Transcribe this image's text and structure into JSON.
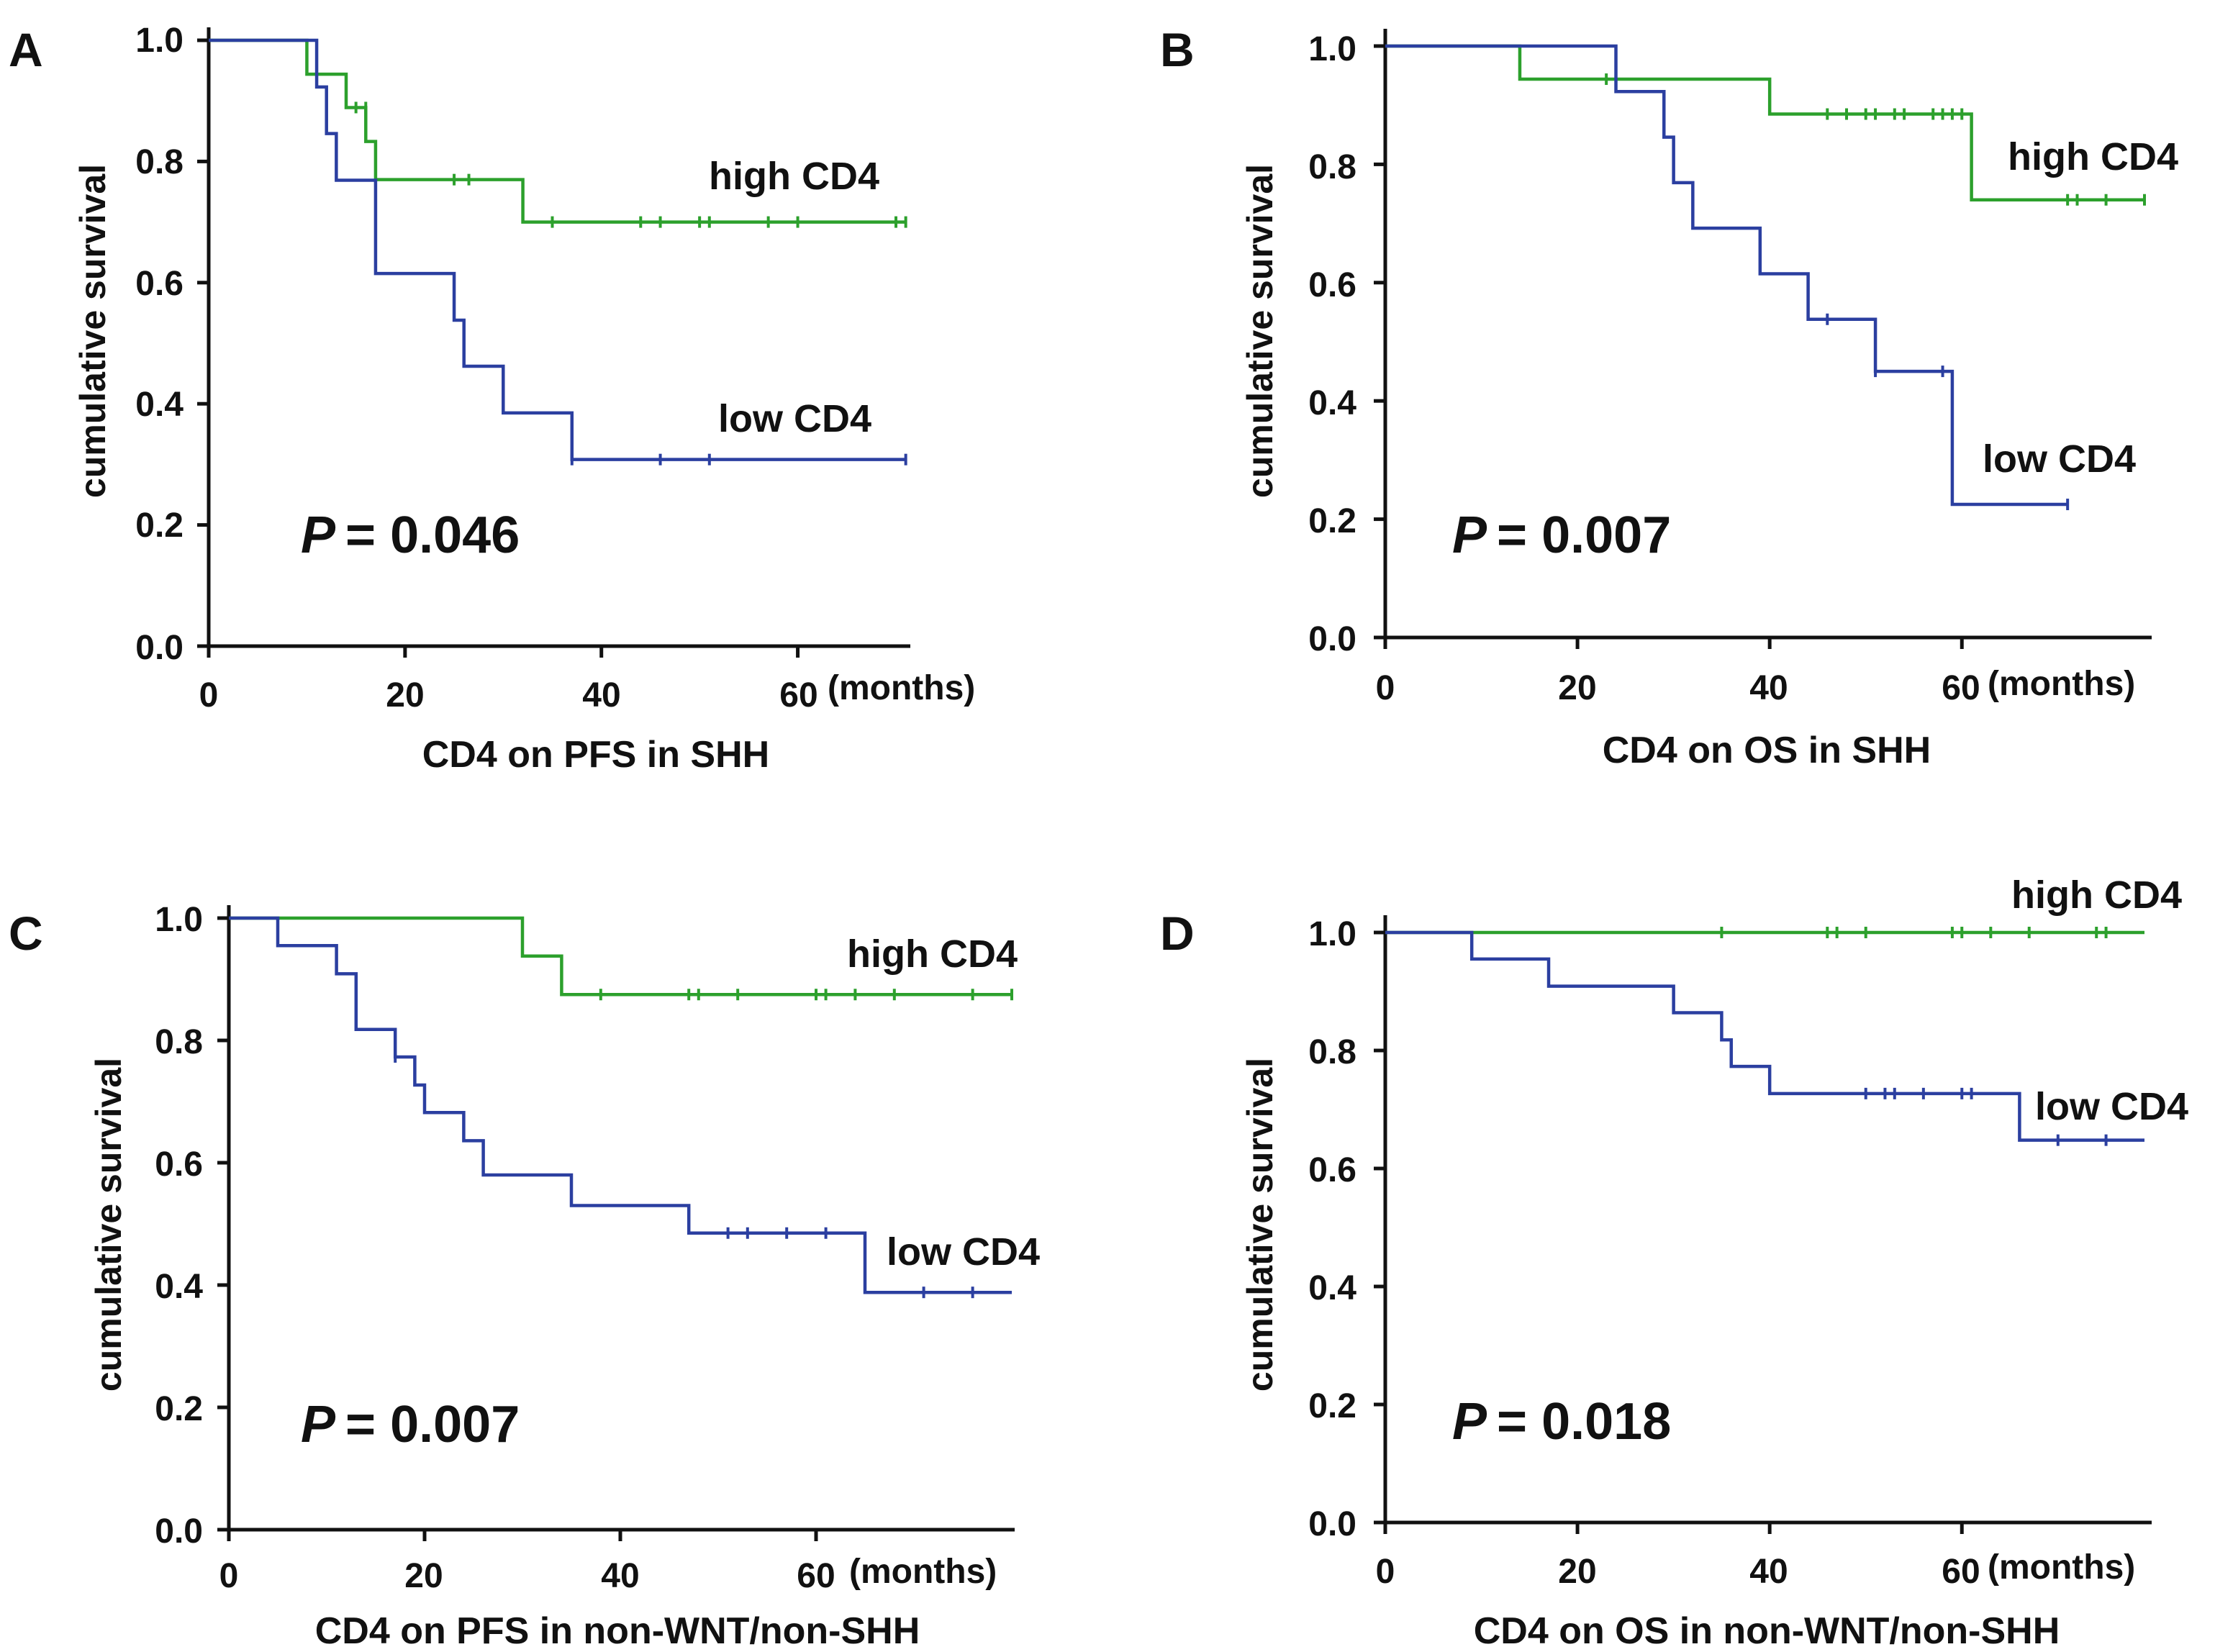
{
  "colors": {
    "high": "#2ca02c",
    "low": "#2b3fa0",
    "axis": "#111111"
  },
  "chart_data": [
    {
      "type": "line",
      "panel": "A",
      "title": "CD4 on PFS in SHH",
      "xlabel": "(months)",
      "ylabel": "cumulative survival",
      "xlim": [
        0,
        70
      ],
      "ylim": [
        0,
        1.0
      ],
      "x_ticks": [
        0,
        20,
        40,
        60
      ],
      "y_ticks": [
        0.0,
        0.2,
        0.4,
        0.6,
        0.8,
        1.0
      ],
      "x_tick_labels": [
        "0",
        "20",
        "40",
        "60"
      ],
      "y_tick_labels": [
        "0.0",
        "0.2",
        "0.4",
        "0.6",
        "0.8",
        "1.0"
      ],
      "p_label": "P",
      "p_value": "= 0.046",
      "series": [
        {
          "name": "high CD4",
          "color_key": "high",
          "steps": [
            [
              0,
              1.0
            ],
            [
              10,
              0.944
            ],
            [
              14,
              0.889
            ],
            [
              16,
              0.833
            ],
            [
              17,
              0.77
            ],
            [
              32,
              0.7
            ]
          ],
          "end_x": 71,
          "censored": [
            [
              15,
              0.889
            ],
            [
              16,
              0.889
            ],
            [
              25,
              0.77
            ],
            [
              26.5,
              0.77
            ],
            [
              35,
              0.7
            ],
            [
              44,
              0.7
            ],
            [
              46,
              0.7
            ],
            [
              50,
              0.7
            ],
            [
              51,
              0.7
            ],
            [
              57,
              0.7
            ],
            [
              60,
              0.7
            ],
            [
              70,
              0.7
            ],
            [
              71,
              0.7
            ]
          ]
        },
        {
          "name": "low CD4",
          "color_key": "low",
          "steps": [
            [
              0,
              1.0
            ],
            [
              11,
              0.923
            ],
            [
              12,
              0.846
            ],
            [
              13,
              0.769
            ],
            [
              17,
              0.615
            ],
            [
              25,
              0.538
            ],
            [
              26,
              0.462
            ],
            [
              30,
              0.385
            ],
            [
              37,
              0.308
            ]
          ],
          "end_x": 71,
          "censored": [
            [
              37,
              0.308
            ],
            [
              46,
              0.308
            ],
            [
              51,
              0.308
            ],
            [
              71,
              0.308
            ]
          ]
        }
      ],
      "annotations": [
        {
          "text": "high CD4",
          "series": "high CD4"
        },
        {
          "text": "low CD4",
          "series": "low CD4"
        }
      ]
    },
    {
      "type": "line",
      "panel": "B",
      "title": "CD4 on OS in SHH",
      "xlabel": "(months)",
      "ylabel": "cumulative survival",
      "xlim": [
        0,
        79
      ],
      "ylim": [
        0,
        1.0
      ],
      "x_ticks": [
        0,
        20,
        40,
        60
      ],
      "y_ticks": [
        0.0,
        0.2,
        0.4,
        0.6,
        0.8,
        1.0
      ],
      "x_tick_labels": [
        "0",
        "20",
        "40",
        "60"
      ],
      "y_tick_labels": [
        "0.0",
        "0.2",
        "0.4",
        "0.6",
        "0.8",
        "1.0"
      ],
      "p_label": "P",
      "p_value": "= 0.007",
      "series": [
        {
          "name": "high CD4",
          "color_key": "high",
          "steps": [
            [
              0,
              1.0
            ],
            [
              14,
              0.944
            ],
            [
              40,
              0.885
            ],
            [
              61,
              0.74
            ]
          ],
          "end_x": 79,
          "censored": [
            [
              23,
              0.944
            ],
            [
              46,
              0.885
            ],
            [
              48,
              0.885
            ],
            [
              50,
              0.885
            ],
            [
              51,
              0.885
            ],
            [
              53,
              0.885
            ],
            [
              54,
              0.885
            ],
            [
              57,
              0.885
            ],
            [
              58,
              0.885
            ],
            [
              59,
              0.885
            ],
            [
              60,
              0.885
            ],
            [
              71,
              0.74
            ],
            [
              72,
              0.74
            ],
            [
              75,
              0.74
            ],
            [
              79,
              0.74
            ]
          ]
        },
        {
          "name": "low CD4",
          "color_key": "low",
          "steps": [
            [
              0,
              1.0
            ],
            [
              24,
              0.923
            ],
            [
              29,
              0.846
            ],
            [
              30,
              0.769
            ],
            [
              32,
              0.692
            ],
            [
              39,
              0.615
            ],
            [
              44,
              0.538
            ],
            [
              51,
              0.45
            ],
            [
              59,
              0.225
            ]
          ],
          "end_x": 71,
          "censored": [
            [
              46,
              0.538
            ],
            [
              51,
              0.45
            ],
            [
              58,
              0.45
            ],
            [
              71,
              0.225
            ]
          ]
        }
      ],
      "annotations": [
        {
          "text": "high CD4",
          "series": "high CD4"
        },
        {
          "text": "low CD4",
          "series": "low CD4"
        }
      ]
    },
    {
      "type": "line",
      "panel": "C",
      "title": "CD4 on PFS in non-WNT/non-SHH",
      "xlabel": "(months)",
      "ylabel": "cumulative survival",
      "xlim": [
        0,
        80
      ],
      "ylim": [
        0,
        1.0
      ],
      "x_ticks": [
        0,
        20,
        40,
        60
      ],
      "y_ticks": [
        0.0,
        0.2,
        0.4,
        0.6,
        0.8,
        1.0
      ],
      "x_tick_labels": [
        "0",
        "20",
        "40",
        "60"
      ],
      "y_tick_labels": [
        "0.0",
        "0.2",
        "0.4",
        "0.6",
        "0.8",
        "1.0"
      ],
      "p_label": "P",
      "p_value": "= 0.007",
      "series": [
        {
          "name": "high CD4",
          "color_key": "high",
          "steps": [
            [
              0,
              1.0
            ],
            [
              30,
              0.938
            ],
            [
              34,
              0.875
            ]
          ],
          "end_x": 80,
          "censored": [
            [
              38,
              0.875
            ],
            [
              47,
              0.875
            ],
            [
              48,
              0.875
            ],
            [
              52,
              0.875
            ],
            [
              60,
              0.875
            ],
            [
              61,
              0.875
            ],
            [
              64,
              0.875
            ],
            [
              68,
              0.875
            ],
            [
              76,
              0.875
            ],
            [
              80,
              0.875
            ]
          ]
        },
        {
          "name": "low CD4",
          "color_key": "low",
          "steps": [
            [
              0,
              1.0
            ],
            [
              5,
              0.955
            ],
            [
              11,
              0.909
            ],
            [
              13,
              0.818
            ],
            [
              17,
              0.773
            ],
            [
              19,
              0.727
            ],
            [
              20,
              0.682
            ],
            [
              24,
              0.636
            ],
            [
              26,
              0.58
            ],
            [
              35,
              0.53
            ],
            [
              47,
              0.485
            ],
            [
              65,
              0.388
            ]
          ],
          "end_x": 80,
          "censored": [
            [
              17,
              0.773
            ],
            [
              51,
              0.485
            ],
            [
              53,
              0.485
            ],
            [
              57,
              0.485
            ],
            [
              61,
              0.485
            ],
            [
              71,
              0.388
            ],
            [
              76,
              0.388
            ]
          ]
        }
      ],
      "annotations": [
        {
          "text": "high CD4",
          "series": "high CD4"
        },
        {
          "text": "low CD4",
          "series": "low CD4"
        }
      ]
    },
    {
      "type": "line",
      "panel": "D",
      "title": "CD4 on OS in non-WNT/non-SHH",
      "xlabel": "(months)",
      "ylabel": "cumulative survival",
      "xlim": [
        0,
        79
      ],
      "ylim": [
        0,
        1.0
      ],
      "x_ticks": [
        0,
        20,
        40,
        60
      ],
      "y_ticks": [
        0.0,
        0.2,
        0.4,
        0.6,
        0.8,
        1.0
      ],
      "x_tick_labels": [
        "0",
        "20",
        "40",
        "60"
      ],
      "y_tick_labels": [
        "0.0",
        "0.2",
        "0.4",
        "0.6",
        "0.8",
        "1.0"
      ],
      "p_label": "P",
      "p_value": "= 0.018",
      "series": [
        {
          "name": "high CD4",
          "color_key": "high",
          "steps": [
            [
              0,
              1.0
            ]
          ],
          "end_x": 79,
          "censored": [
            [
              35,
              1.0
            ],
            [
              46,
              1.0
            ],
            [
              47,
              1.0
            ],
            [
              50,
              1.0
            ],
            [
              59,
              1.0
            ],
            [
              60,
              1.0
            ],
            [
              63,
              1.0
            ],
            [
              67,
              1.0
            ],
            [
              74,
              1.0
            ],
            [
              75,
              1.0
            ]
          ]
        },
        {
          "name": "low CD4",
          "color_key": "low",
          "steps": [
            [
              0,
              1.0
            ],
            [
              9,
              0.955
            ],
            [
              17,
              0.909
            ],
            [
              30,
              0.864
            ],
            [
              35,
              0.818
            ],
            [
              36,
              0.773
            ],
            [
              40,
              0.727
            ],
            [
              66,
              0.648
            ]
          ],
          "end_x": 79,
          "censored": [
            [
              50,
              0.727
            ],
            [
              52,
              0.727
            ],
            [
              53,
              0.727
            ],
            [
              56,
              0.727
            ],
            [
              60,
              0.727
            ],
            [
              61,
              0.727
            ],
            [
              70,
              0.648
            ],
            [
              75,
              0.648
            ]
          ]
        }
      ],
      "annotations": [
        {
          "text": "high CD4",
          "series": "high CD4"
        },
        {
          "text": "low CD4",
          "series": "low CD4"
        }
      ]
    }
  ]
}
